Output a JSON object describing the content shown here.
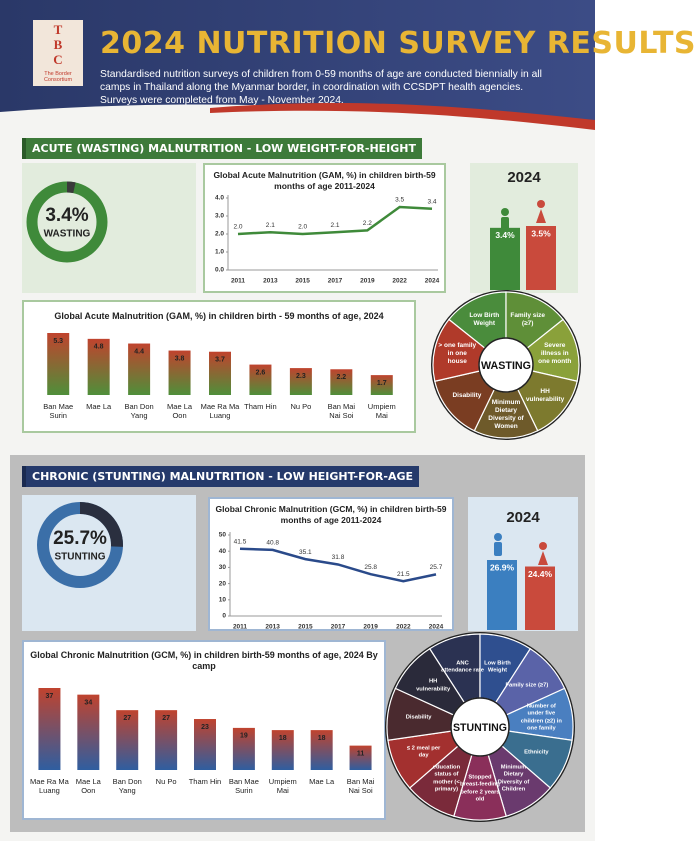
{
  "header": {
    "logo": "TBC",
    "logo_caption": "The Border Consortium",
    "title": "2024 NUTRITION SURVEY RESULTS",
    "description": "Standardised nutrition surveys of children from 0-59 months of age are conducted biennially in all camps in Thailand along the Myanmar border, in coordination with CCSDPT health agencies. Surveys were completed from May - November 2024."
  },
  "sections": [
    "ACUTE (WASTING) MALNUTRITION - LOW WEIGHT-FOR-HEIGHT",
    "CHRONIC (STUNTING) MALNUTRITION - LOW HEIGHT-FOR-AGE"
  ],
  "chart_data": [
    {
      "type": "donut",
      "values": [
        3.4
      ],
      "value_labels": [
        "3.4%"
      ],
      "label": "WASTING",
      "colors": [
        "#3a3a3a",
        "#3f8a3a"
      ]
    },
    {
      "type": "line",
      "title": "Global Acute Malnutrition (GAM, %) in children birth-59 months of age 2011-2024",
      "categories": [
        "2011",
        "2013",
        "2015",
        "2017",
        "2019",
        "2022",
        "2024"
      ],
      "values": [
        2.0,
        2.1,
        2.0,
        2.1,
        2.2,
        3.5,
        3.4
      ],
      "value_labels": [
        "2.0",
        "2.1",
        "2.0",
        "2.1",
        "2.2",
        "3.5",
        "3.4"
      ],
      "ylim": [
        0,
        4
      ],
      "yticks": [
        {
          "value": 0,
          "label": "0.0"
        },
        {
          "value": 1,
          "label": "1.0"
        },
        {
          "value": 2,
          "label": "2.0"
        },
        {
          "value": 3,
          "label": "3.0"
        },
        {
          "value": 4,
          "label": "4.0"
        }
      ],
      "color": "#3f8a3a",
      "grid": false
    },
    {
      "type": "bar",
      "title": "2024",
      "values": [
        3.4,
        3.5
      ],
      "value_labels": [
        "3.4%",
        "3.5%"
      ],
      "colors": [
        "#3f8a3a",
        "#c94a3c"
      ]
    },
    {
      "type": "bar",
      "title": "Global Acute Malnutrition (GAM, %) in children birth - 59 months of age, 2024",
      "categories": [
        "Ban Mae Surin",
        "Mae La",
        "Ban Don Yang",
        "Mae La Oon",
        "Mae Ra Ma Luang",
        "Tham Hin",
        "Nu Po",
        "Ban Mai Nai Soi",
        "Umpiem Mai"
      ],
      "values": [
        5.3,
        4.8,
        4.4,
        3.8,
        3.7,
        2.6,
        2.3,
        2.2,
        1.7
      ],
      "colors": [
        "#c0432e",
        "#4f8f3a"
      ],
      "gradient": true
    },
    {
      "type": "donut",
      "values": [
        25.7
      ],
      "value_labels": [
        "25.7%"
      ],
      "label": "STUNTING",
      "colors": [
        "#2a2f3f",
        "#3b6fa8"
      ]
    },
    {
      "type": "line",
      "title": "Global Chronic Malnutrition (GCM, %) in children birth-59 months of age 2011-2024",
      "categories": [
        "2011",
        "2013",
        "2015",
        "2017",
        "2019",
        "2022",
        "2024"
      ],
      "values": [
        41.5,
        40.8,
        35.1,
        31.8,
        25.8,
        21.5,
        25.7
      ],
      "ylim": [
        0,
        50
      ],
      "yticks": [
        0,
        10,
        20,
        30,
        40,
        50
      ],
      "color": "#2a4a8a",
      "grid": false
    },
    {
      "type": "bar",
      "title": "2024",
      "values": [
        26.9,
        24.4
      ],
      "value_labels": [
        "26.9%",
        "24.4%"
      ],
      "colors": [
        "#3b7fc0",
        "#c94a3c"
      ]
    },
    {
      "type": "bar",
      "title": "Global Chronic Malnutrition (GCM, %) in children birth-59 months of age, 2024 By camp",
      "categories": [
        "Mae Ra Ma Luang",
        "Mae La Oon",
        "Ban Don Yang",
        "Nu Po",
        "Tham Hin",
        "Ban Mae Surin",
        "Umpiem Mai",
        "Mae La",
        "Ban Mai Nai Soi"
      ],
      "values": [
        37,
        34,
        27,
        27,
        23,
        19,
        18,
        18,
        11
      ],
      "colors": [
        "#c0432e",
        "#2f5ea0"
      ],
      "gradient": true
    }
  ],
  "wheels": [
    {
      "center": "WASTING",
      "factors": [
        {
          "label": "Low Birth Weight",
          "color": "#4a8c3c"
        },
        {
          "label": "Family size (≥7)",
          "color": "#5f8f38"
        },
        {
          "label": "Severe illness in one month",
          "color": "#8aa13a"
        },
        {
          "label": "HH vulnerability",
          "color": "#7d7a2e"
        },
        {
          "label": "Minimum Dietary Diversity of Women",
          "color": "#6e5a2a"
        },
        {
          "label": "Disability",
          "color": "#7a3d22"
        },
        {
          "label": "> one family in one house",
          "color": "#b03a2a"
        }
      ]
    },
    {
      "center": "STUNTING",
      "factors": [
        {
          "label": "ANC attendance rate",
          "color": "#2b3252"
        },
        {
          "label": "Low Birth Weight",
          "color": "#2f4f8f"
        },
        {
          "label": "Family size (≥7)",
          "color": "#5a63a8"
        },
        {
          "label": "Number of under five children (≥2) in one family",
          "color": "#4a7fc0"
        },
        {
          "label": "Ethnicity",
          "color": "#3a6e8f"
        },
        {
          "label": "Minimum Dietary Diversity of Children",
          "color": "#6a3a6e"
        },
        {
          "label": "Stopped breast-feeding before 2 years old",
          "color": "#8a2f5a"
        },
        {
          "label": "education status of mother (< primary)",
          "color": "#7a2a3a"
        },
        {
          "label": "≤ 2 meal per day",
          "color": "#a3302f"
        },
        {
          "label": "Disability",
          "color": "#4a2a2f"
        },
        {
          "label": "HH vulnerability",
          "color": "#2a2a3a"
        }
      ]
    }
  ]
}
